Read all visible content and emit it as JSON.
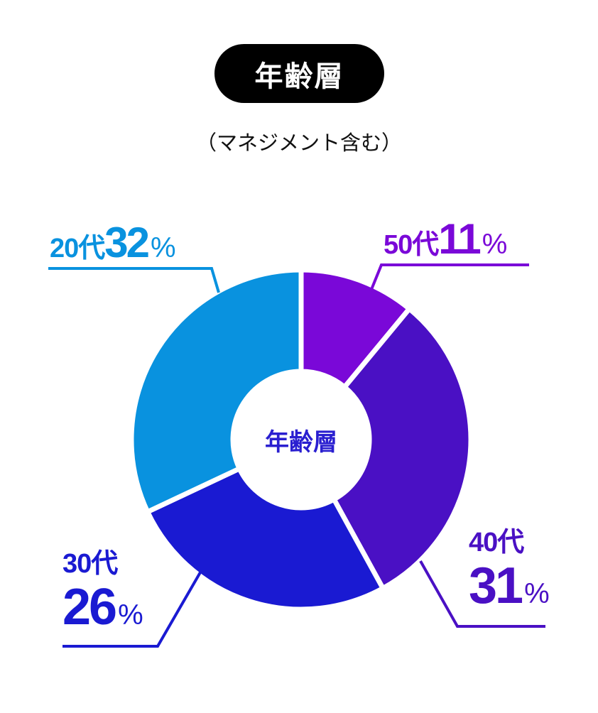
{
  "title": "年齢層",
  "subtitle": "（マネジメント含む）",
  "chart_data": {
    "type": "pie",
    "style": "donut",
    "title": "年齢層",
    "subtitle": "（マネジメント含む）",
    "center_label": "年齢層",
    "unit": "%",
    "slices": [
      {
        "label": "50代",
        "value": 11,
        "color": "#7a08d8"
      },
      {
        "label": "40代",
        "value": 31,
        "color": "#4a10c4"
      },
      {
        "label": "30代",
        "value": 26,
        "color": "#1a1ad2"
      },
      {
        "label": "20代",
        "value": 32,
        "color": "#0992df"
      }
    ]
  }
}
